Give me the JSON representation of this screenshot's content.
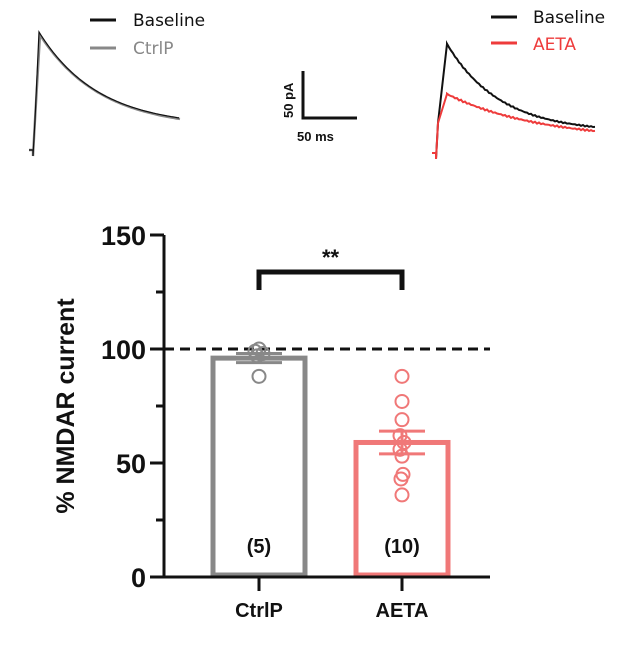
{
  "traces": {
    "left": {
      "legend": [
        {
          "label": "Baseline",
          "color": "#111111"
        },
        {
          "label": "CtrlP",
          "color": "#888888"
        }
      ]
    },
    "right": {
      "legend": [
        {
          "label": "Baseline",
          "color": "#111111"
        },
        {
          "label": "AETA",
          "color": "#ee3b3b"
        }
      ]
    },
    "scale_bar": {
      "vertical_label": "50 pA",
      "horizontal_label": "50 ms"
    }
  },
  "chart_data": {
    "type": "bar",
    "title": "",
    "xlabel": "",
    "ylabel": "% NMDAR current",
    "ylim": [
      0,
      150
    ],
    "yticks": [
      0,
      50,
      100,
      150
    ],
    "ytick_labels": [
      "0",
      "50",
      "100",
      "150"
    ],
    "minor_yticks": [
      25,
      75,
      125
    ],
    "reference_line": {
      "y": 100,
      "style": "dashed",
      "color": "#111111"
    },
    "categories": [
      "CtrlP",
      "AETA"
    ],
    "series": [
      {
        "name": "CtrlP",
        "mean": 96,
        "sem": 2,
        "n_label": "(5)",
        "color": "#888888",
        "points": [
          100,
          99,
          98,
          97,
          88
        ]
      },
      {
        "name": "AETA",
        "mean": 59,
        "sem": 5,
        "n_label": "(10)",
        "color": "#f07878",
        "points": [
          88,
          77,
          69,
          62,
          59,
          56,
          53,
          45,
          43,
          36
        ]
      }
    ],
    "significance": {
      "between": [
        "CtrlP",
        "AETA"
      ],
      "label": "**"
    },
    "grid": false,
    "legend": "none"
  }
}
